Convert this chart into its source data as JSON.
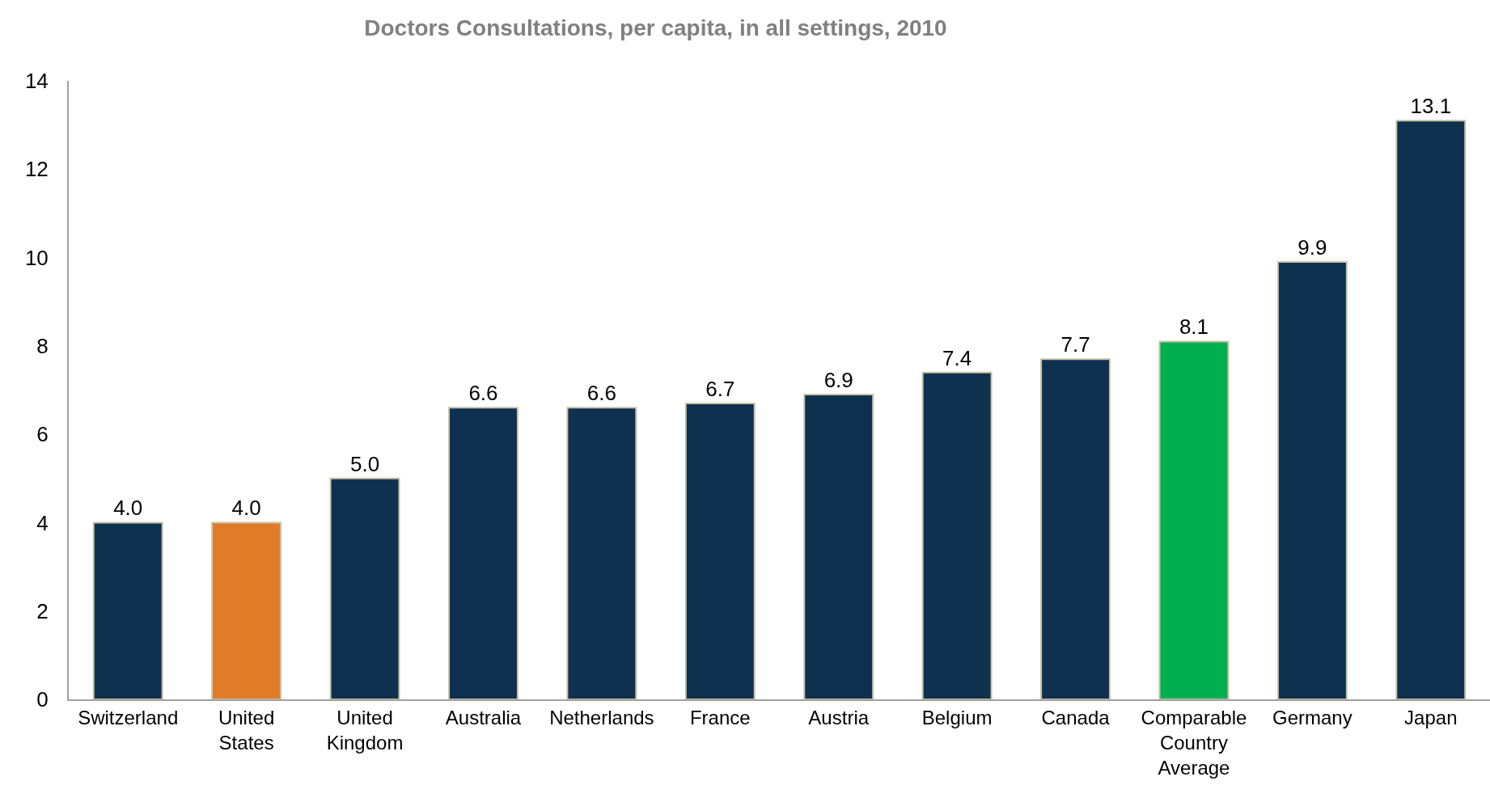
{
  "chart_data": {
    "type": "bar",
    "title": "Doctors Consultations, per capita, in all settings, 2010",
    "categories": [
      "Switzerland",
      "United States",
      "United Kingdom",
      "Australia",
      "Netherlands",
      "France",
      "Austria",
      "Belgium",
      "Canada",
      "Comparable Country Average",
      "Germany",
      "Japan"
    ],
    "values": [
      4.0,
      4.0,
      5.0,
      6.6,
      6.6,
      6.7,
      6.9,
      7.4,
      7.7,
      8.1,
      9.9,
      13.1
    ],
    "colors": [
      "#0e3150",
      "#e07b28",
      "#0e3150",
      "#0e3150",
      "#0e3150",
      "#0e3150",
      "#0e3150",
      "#0e3150",
      "#0e3150",
      "#00b050",
      "#0e3150",
      "#0e3150"
    ],
    "value_labels": [
      "4.0",
      "4.0",
      "5.0",
      "6.6",
      "6.6",
      "6.7",
      "6.9",
      "7.4",
      "7.7",
      "8.1",
      "9.9",
      "13.1"
    ],
    "ylim": [
      0,
      14
    ],
    "yticks": [
      0,
      2,
      4,
      6,
      8,
      10,
      12,
      14
    ]
  }
}
